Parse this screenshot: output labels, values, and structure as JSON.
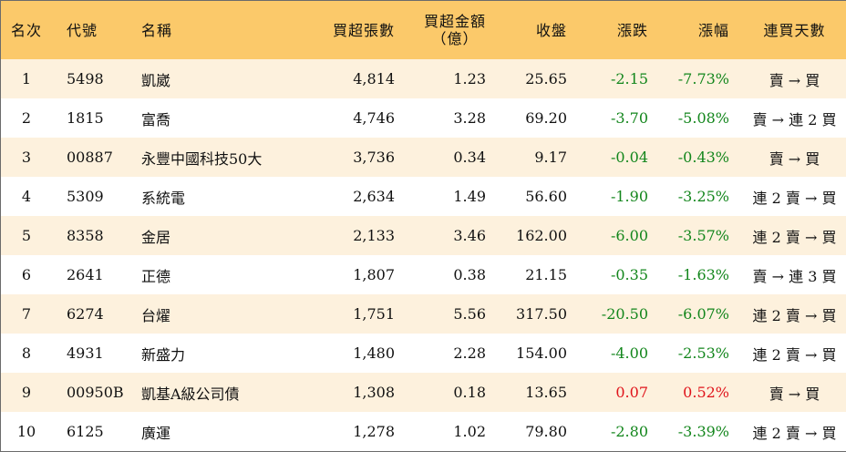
{
  "headers": {
    "rank": "名次",
    "code": "代號",
    "name": "名稱",
    "volume": "買超張數",
    "amount_line1": "買超金額",
    "amount_line2": "（億）",
    "close": "收盤",
    "change": "漲跌",
    "pct": "漲幅",
    "days": "連買天數"
  },
  "colors": {
    "header_bg": "#fbc96a",
    "odd_row_bg": "#fdf1dd",
    "down_green": "#13861c",
    "up_red": "#e0141b"
  },
  "rows": [
    {
      "rank": "1",
      "code": "5498",
      "name": "凱崴",
      "volume": "4,814",
      "amount": "1.23",
      "close": "25.65",
      "change": "-2.15",
      "pct": "-7.73%",
      "days": "賣 → 買",
      "dir": "down"
    },
    {
      "rank": "2",
      "code": "1815",
      "name": "富喬",
      "volume": "4,746",
      "amount": "3.28",
      "close": "69.20",
      "change": "-3.70",
      "pct": "-5.08%",
      "days": "賣 → 連 2 買",
      "dir": "down"
    },
    {
      "rank": "3",
      "code": "00887",
      "name": "永豐中國科技50大",
      "volume": "3,736",
      "amount": "0.34",
      "close": "9.17",
      "change": "-0.04",
      "pct": "-0.43%",
      "days": "賣 → 買",
      "dir": "down"
    },
    {
      "rank": "4",
      "code": "5309",
      "name": "系統電",
      "volume": "2,634",
      "amount": "1.49",
      "close": "56.60",
      "change": "-1.90",
      "pct": "-3.25%",
      "days": "連 2 賣 → 買",
      "dir": "down"
    },
    {
      "rank": "5",
      "code": "8358",
      "name": "金居",
      "volume": "2,133",
      "amount": "3.46",
      "close": "162.00",
      "change": "-6.00",
      "pct": "-3.57%",
      "days": "連 2 賣 → 買",
      "dir": "down"
    },
    {
      "rank": "6",
      "code": "2641",
      "name": "正德",
      "volume": "1,807",
      "amount": "0.38",
      "close": "21.15",
      "change": "-0.35",
      "pct": "-1.63%",
      "days": "賣 → 連 3 買",
      "dir": "down"
    },
    {
      "rank": "7",
      "code": "6274",
      "name": "台燿",
      "volume": "1,751",
      "amount": "5.56",
      "close": "317.50",
      "change": "-20.50",
      "pct": "-6.07%",
      "days": "連 2 賣 → 買",
      "dir": "down"
    },
    {
      "rank": "8",
      "code": "4931",
      "name": "新盛力",
      "volume": "1,480",
      "amount": "2.28",
      "close": "154.00",
      "change": "-4.00",
      "pct": "-2.53%",
      "days": "連 2 賣 → 買",
      "dir": "down"
    },
    {
      "rank": "9",
      "code": "00950B",
      "name": "凱基A級公司債",
      "volume": "1,308",
      "amount": "0.18",
      "close": "13.65",
      "change": "0.07",
      "pct": "0.52%",
      "days": "賣 → 買",
      "dir": "up"
    },
    {
      "rank": "10",
      "code": "6125",
      "name": "廣運",
      "volume": "1,278",
      "amount": "1.02",
      "close": "79.80",
      "change": "-2.80",
      "pct": "-3.39%",
      "days": "連 2 賣 → 買",
      "dir": "down"
    }
  ]
}
